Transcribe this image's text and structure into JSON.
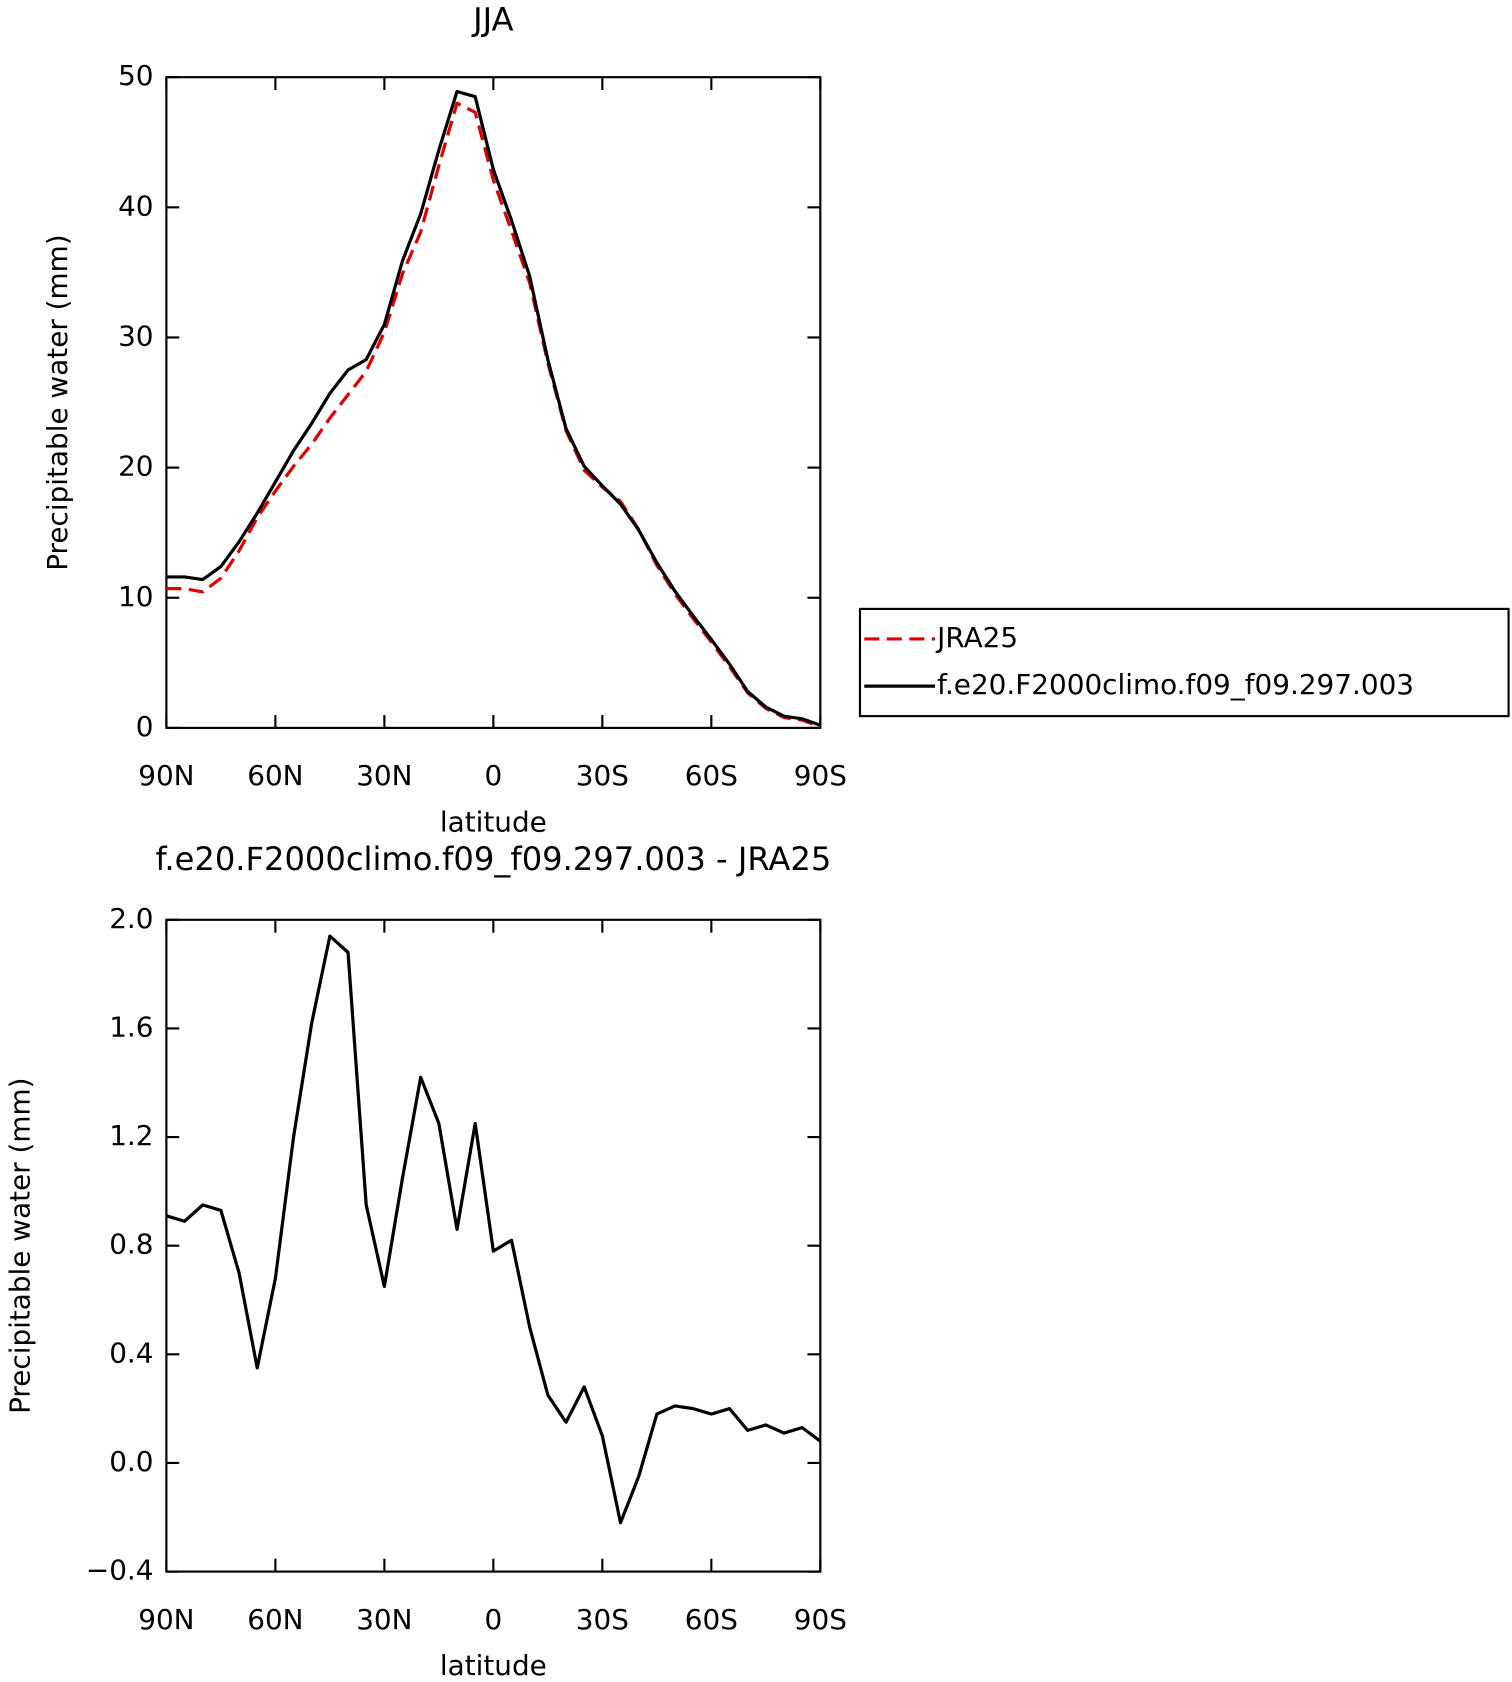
{
  "chart_data": [
    {
      "type": "line",
      "title": "JJA",
      "xlabel": "latitude",
      "ylabel": "Precipitable water (mm)",
      "x": [
        90,
        85,
        80,
        75,
        70,
        65,
        60,
        55,
        50,
        45,
        40,
        35,
        30,
        25,
        20,
        15,
        10,
        5,
        0,
        -5,
        -10,
        -15,
        -20,
        -25,
        -30,
        -35,
        -40,
        -45,
        -50,
        -55,
        -60,
        -65,
        -70,
        -75,
        -80,
        -85,
        -90
      ],
      "series": [
        {
          "name": "JRA25",
          "color": "#e00000",
          "linestyle": "dashed",
          "values": [
            10.7,
            10.7,
            10.45,
            11.5,
            13.6,
            16.15,
            18.2,
            20.1,
            21.8,
            23.8,
            25.6,
            27.4,
            30.4,
            34.9,
            38.1,
            43.2,
            48.0,
            47.3,
            42.1,
            38.2,
            34.2,
            28.05,
            22.85,
            19.8,
            18.5,
            17.4,
            15.25,
            12.5,
            10.3,
            8.4,
            6.6,
            4.7,
            2.7,
            1.5,
            0.8,
            0.6,
            0.1
          ]
        },
        {
          "name": "f.e20.F2000climo.f09_f09.297.003",
          "color": "#000000",
          "linestyle": "solid",
          "values": [
            11.6,
            11.6,
            11.4,
            12.4,
            14.3,
            16.5,
            18.9,
            21.3,
            23.4,
            25.7,
            27.5,
            28.3,
            31.0,
            35.9,
            39.5,
            44.4,
            48.9,
            48.5,
            42.9,
            39.0,
            34.7,
            28.3,
            23.0,
            20.1,
            18.6,
            17.2,
            15.2,
            12.7,
            10.5,
            8.6,
            6.8,
            4.9,
            2.8,
            1.6,
            0.9,
            0.7,
            0.2
          ]
        }
      ],
      "xlim": [
        90,
        -90
      ],
      "xticks": [
        {
          "value": 90,
          "label": "90N"
        },
        {
          "value": 60,
          "label": "60N"
        },
        {
          "value": 30,
          "label": "30N"
        },
        0,
        {
          "value": -30,
          "label": "30S"
        },
        {
          "value": -60,
          "label": "60S"
        },
        {
          "value": -90,
          "label": "90S"
        }
      ],
      "ylim": [
        0,
        50
      ],
      "yticks": [
        0,
        10,
        20,
        30,
        40,
        50
      ],
      "legend": "outside-right"
    },
    {
      "type": "line",
      "title": "f.e20.F2000climo.f09_f09.297.003 - JRA25",
      "xlabel": "latitude",
      "ylabel": "Precipitable water (mm)",
      "x": [
        90,
        85,
        80,
        75,
        70,
        65,
        60,
        55,
        50,
        45,
        40,
        35,
        30,
        25,
        20,
        15,
        10,
        5,
        0,
        -5,
        -10,
        -15,
        -20,
        -25,
        -30,
        -35,
        -40,
        -45,
        -50,
        -55,
        -60,
        -65,
        -70,
        -75,
        -80,
        -85,
        -90
      ],
      "series": [
        {
          "color": "#000000",
          "linestyle": "solid",
          "values": [
            0.91,
            0.89,
            0.95,
            0.93,
            0.7,
            0.35,
            0.68,
            1.2,
            1.62,
            1.94,
            1.88,
            0.95,
            0.65,
            1.05,
            1.42,
            1.25,
            0.86,
            1.25,
            0.78,
            0.82,
            0.5,
            0.25,
            0.15,
            0.28,
            0.1,
            -0.22,
            -0.05,
            0.18,
            0.21,
            0.2,
            0.18,
            0.2,
            0.12,
            0.14,
            0.11,
            0.13,
            0.08
          ]
        }
      ],
      "xlim": [
        90,
        -90
      ],
      "xticks": [
        {
          "value": 90,
          "label": "90N"
        },
        {
          "value": 60,
          "label": "60N"
        },
        {
          "value": 30,
          "label": "30N"
        },
        0,
        {
          "value": -30,
          "label": "30S"
        },
        {
          "value": -60,
          "label": "60S"
        },
        {
          "value": -90,
          "label": "90S"
        }
      ],
      "ylim": [
        -0.4,
        2.0
      ],
      "yticks": [
        {
          "value": -0.4,
          "label": "−0.4"
        },
        {
          "value": 0,
          "label": "0.0"
        },
        {
          "value": 0.4,
          "label": "0.4"
        },
        {
          "value": 0.8,
          "label": "0.8"
        },
        {
          "value": 1.2,
          "label": "1.2"
        },
        {
          "value": 1.6,
          "label": "1.6"
        },
        {
          "value": 2,
          "label": "2.0"
        }
      ]
    }
  ]
}
